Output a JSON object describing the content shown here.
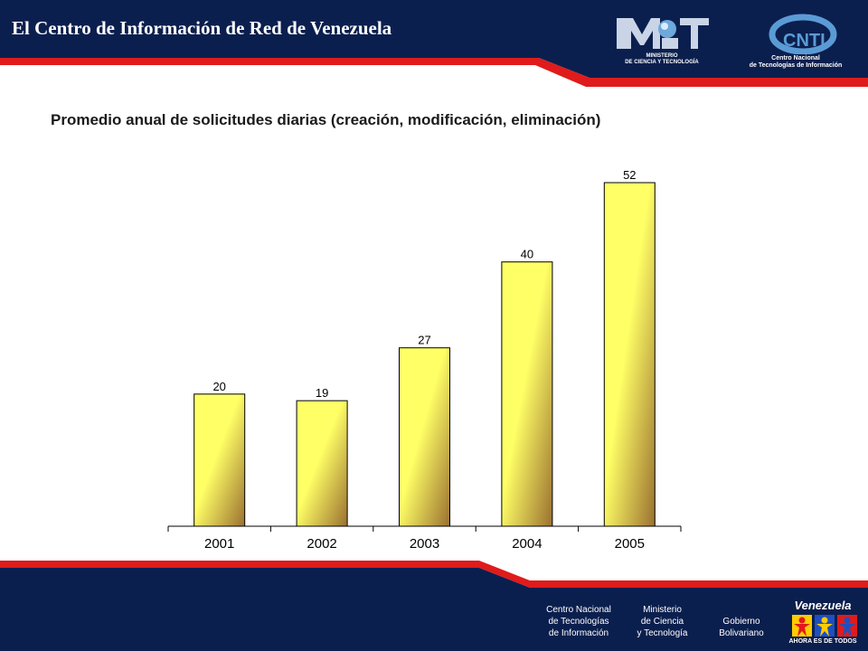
{
  "header": {
    "title": "El Centro de Información de Red de Venezuela",
    "logo_mct": {
      "line1": "MINISTERIO",
      "line2": "DE CIENCIA Y TECNOLOGÍA"
    },
    "logo_cnti": {
      "mark": "CNTI",
      "line1": "Centro Nacional",
      "line2": "de Tecnologías de Información"
    }
  },
  "chart_title": "Promedio anual de solicitudes diarias (creación, modificación, eliminación)",
  "chart_data": {
    "type": "bar",
    "title": "Promedio anual de solicitudes diarias (creación, modificación, eliminación)",
    "categories": [
      "2001",
      "2002",
      "2003",
      "2004",
      "2005"
    ],
    "values": [
      20,
      19,
      27,
      40,
      52
    ],
    "xlabel": "",
    "ylabel": "",
    "ylim": [
      0,
      60
    ],
    "grid": false,
    "legend": "none",
    "colors": {
      "bar_top": "#ffff66",
      "bar_bottom": "#9a7030",
      "outline": "#000000"
    }
  },
  "footer": {
    "cnti": [
      "Centro Nacional",
      "de Tecnologías",
      "de Información"
    ],
    "ministerio": [
      "Ministerio",
      "de Ciencia",
      "y Tecnología"
    ],
    "gobierno": [
      "Gobierno",
      "Bolivariano"
    ],
    "venezuela": "Venezuela",
    "slogan": "AHORA ES DE TODOS"
  },
  "colors": {
    "navy": "#0b1f4e",
    "red": "#e01b1b",
    "white": "#ffffff"
  }
}
